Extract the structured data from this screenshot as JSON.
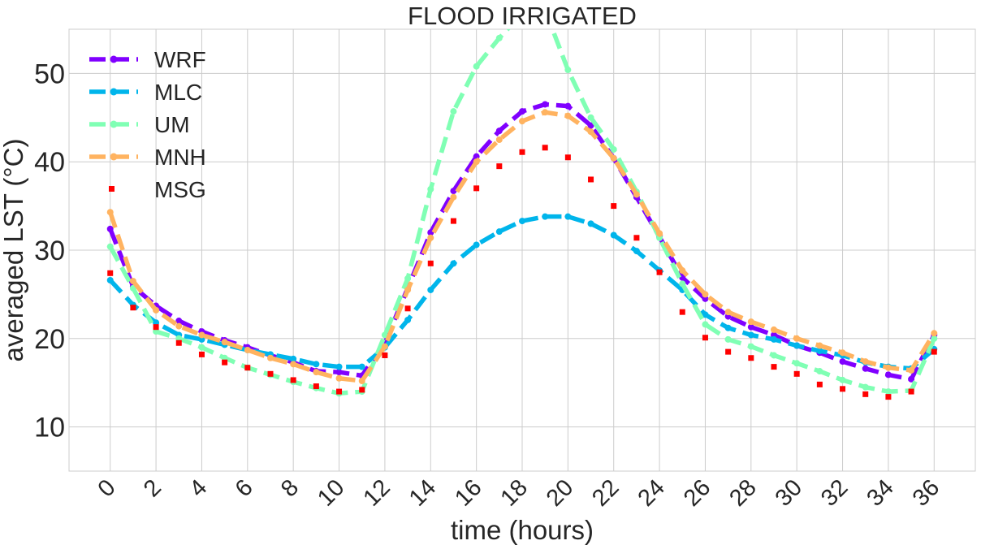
{
  "chart_data": {
    "type": "line",
    "title": "FLOOD IRRIGATED",
    "xlabel": "time (hours)",
    "ylabel": "averaged LST (°C)",
    "xlim": [
      -1.8,
      37.8
    ],
    "ylim": [
      5,
      55
    ],
    "xticks": [
      0,
      2,
      4,
      6,
      8,
      10,
      12,
      14,
      16,
      18,
      20,
      22,
      24,
      26,
      28,
      30,
      32,
      34,
      36
    ],
    "yticks": [
      10,
      20,
      30,
      40,
      50
    ],
    "grid": true,
    "legend_position": "top-left",
    "x": [
      0,
      1,
      2,
      3,
      4,
      5,
      6,
      7,
      8,
      9,
      10,
      11,
      12,
      13,
      14,
      15,
      16,
      17,
      18,
      19,
      20,
      21,
      22,
      23,
      24,
      25,
      26,
      27,
      28,
      29,
      30,
      31,
      32,
      33,
      34,
      35,
      36
    ],
    "series": [
      {
        "name": "WRF",
        "color": "#8000ff",
        "style": "dashed-marker",
        "values": [
          32.4,
          25.9,
          23.7,
          22.0,
          20.8,
          19.8,
          19.0,
          18.1,
          17.3,
          16.3,
          16.2,
          15.8,
          19.5,
          25.7,
          32.0,
          36.7,
          40.6,
          43.5,
          45.7,
          46.5,
          46.3,
          44.1,
          40.4,
          36.0,
          31.5,
          26.9,
          24.5,
          22.5,
          21.3,
          20.4,
          19.2,
          18.4,
          17.4,
          16.6,
          15.9,
          15.4,
          20.4
        ]
      },
      {
        "name": "MLC",
        "color": "#00b5eb",
        "style": "dashed-marker",
        "values": [
          26.6,
          23.8,
          21.8,
          20.4,
          19.9,
          19.3,
          18.7,
          18.2,
          17.7,
          17.1,
          16.8,
          16.8,
          19.0,
          22.1,
          25.5,
          28.5,
          30.6,
          32.1,
          33.3,
          33.8,
          33.8,
          33.0,
          31.7,
          29.9,
          27.7,
          25.5,
          22.7,
          21.2,
          20.4,
          19.9,
          19.2,
          18.6,
          18.1,
          17.3,
          16.8,
          16.6,
          18.8
        ]
      },
      {
        "name": "UM",
        "color": "#80ffb4",
        "style": "dashed-marker",
        "values": [
          30.4,
          25.7,
          20.8,
          20.0,
          19.0,
          17.8,
          16.7,
          15.9,
          15.1,
          14.4,
          13.8,
          14.0,
          20.4,
          26.8,
          36.9,
          45.7,
          50.8,
          54.0,
          56.8,
          57.2,
          50.4,
          45.0,
          41.4,
          36.6,
          31.4,
          26.2,
          21.6,
          19.9,
          19.1,
          18.1,
          17.2,
          16.3,
          15.3,
          14.5,
          14.0,
          14.1,
          20.0
        ]
      },
      {
        "name": "MNH",
        "color": "#ffb360",
        "style": "dashed-marker",
        "values": [
          34.3,
          26.5,
          23.2,
          21.4,
          20.4,
          19.6,
          18.7,
          17.8,
          17.1,
          16.2,
          15.5,
          15.2,
          19.1,
          25.5,
          31.4,
          36.0,
          40.0,
          42.5,
          44.6,
          45.6,
          45.2,
          43.4,
          40.4,
          36.3,
          31.9,
          27.7,
          25.0,
          23.0,
          21.9,
          21.0,
          20.0,
          19.2,
          18.4,
          17.4,
          16.7,
          16.4,
          20.6
        ]
      },
      {
        "name": "MSG",
        "color": "#ff0000",
        "style": "square-marker",
        "values": [
          27.4,
          23.5,
          21.3,
          19.5,
          18.2,
          17.3,
          16.7,
          16.0,
          15.3,
          14.6,
          14.0,
          14.2,
          18.1,
          23.4,
          28.5,
          33.3,
          37.0,
          39.5,
          41.1,
          41.6,
          40.5,
          38.0,
          35.0,
          31.4,
          27.5,
          23.0,
          20.1,
          18.5,
          17.8,
          16.8,
          16.0,
          14.8,
          14.3,
          13.7,
          13.4,
          14.0,
          18.5
        ]
      }
    ]
  }
}
